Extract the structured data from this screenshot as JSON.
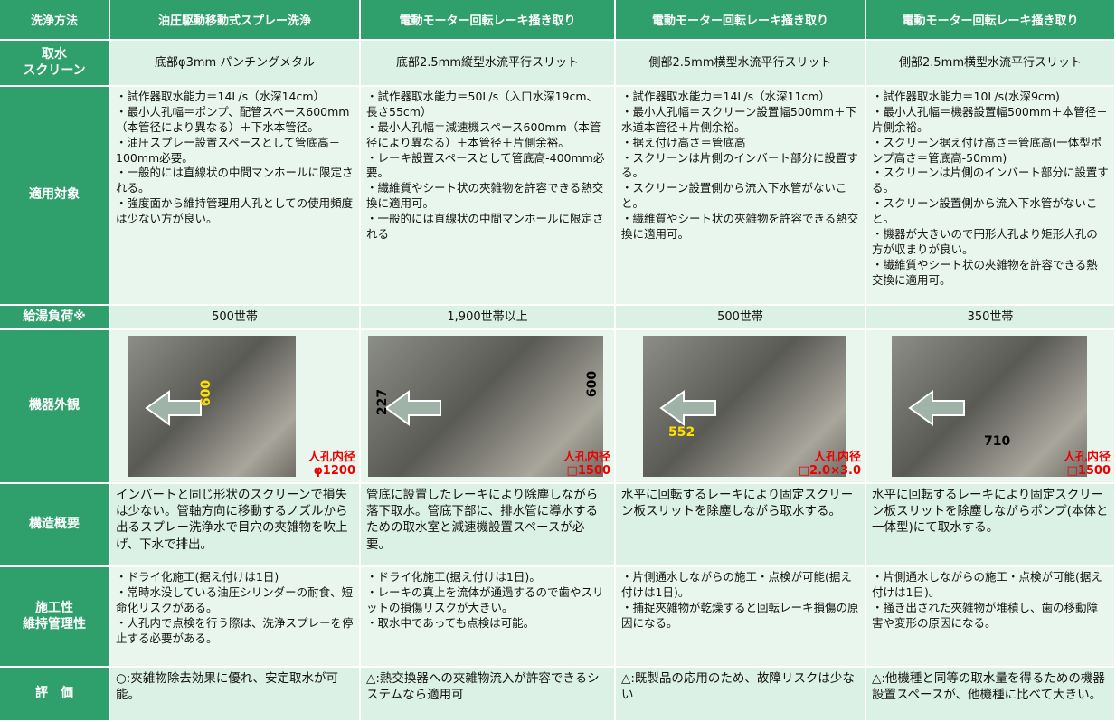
{
  "table": {
    "header": {
      "label": "洗浄方法",
      "columns": [
        "油圧駆動移動式スプレー洗浄",
        "電動モーター回転レーキ掻き取り",
        "電動モーター回転レーキ掻き取り",
        "電動モーター回転レーキ掻き取り"
      ]
    },
    "rows": [
      {
        "label": [
          "取水",
          "スクリーン"
        ],
        "cells": [
          "底部φ3mm パンチングメタル",
          "底部2.5mm縦型水流平行スリット",
          "側部2.5mm横型水流平行スリット",
          "側部2.5mm横型水流平行スリット"
        ]
      },
      {
        "label": [
          "適用対象"
        ],
        "cells": [
          [
            "・試作器取水能力＝14L/s（水深14cm）",
            "・最小人孔幅＝ポンプ、配管スペース600mm（本管径により異なる）＋下水本管径。",
            "・油圧スプレー設置スペースとして管底高－100mm必要。",
            "・一般的には直線状の中間マンホールに限定される。",
            "・強度面から維持管理用人孔としての使用頻度は少ない方が良い。"
          ],
          [
            "・試作器取水能力＝50L/s（入口水深19cm、長さ55cm）",
            "・最小人孔幅＝減速機スペース600mm（本管径により異なる）＋本管径＋片側余裕。",
            "・レーキ設置スペースとして管底高-400mm必要。",
            "・繊維質やシート状の夾雑物を許容できる熱交換に適用可。",
            "・一般的には直線状の中間マンホールに限定される"
          ],
          [
            "・試作器取水能力＝14L/s（水深11cm）",
            "・最小人孔幅＝スクリーン設置幅500mm＋下水道本管径＋片側余裕。",
            "・据え付け高さ＝管底高",
            "・スクリーンは片側のインバート部分に設置する。",
            "・スクリーン設置側から流入下水管がないこと。",
            "・繊維質やシート状の夾雑物を許容できる熱交換に適用可。"
          ],
          [
            "・試作器取水能力＝10L/s(水深9cm)",
            "・最小人孔幅＝機器設置幅500mm＋本管径＋片側余裕。",
            "・スクリーン据え付け高さ＝管底高(一体型ポンプ高さ＝管底高-50mm)",
            "・スクリーンは片側のインバート部分に設置する。",
            "・スクリーン設置側から流入下水管がないこと。",
            "・機器が大きいので円形人孔より矩形人孔の方が収まりが良い。",
            "・繊維質やシート状の夾雑物を許容できる熱交換に適用可。"
          ]
        ]
      },
      {
        "label": [
          "給湯負荷※"
        ],
        "cells": [
          "500世帯",
          "1,900世帯以上",
          "500世帯",
          "350世帯"
        ]
      },
      {
        "label": [
          "機器外観"
        ],
        "cells": [
          {
            "dimensions": [
              "600"
            ],
            "manhole": [
              "人孔内径",
              "φ1200"
            ]
          },
          {
            "dimensions": [
              "227",
              "600"
            ],
            "manhole": [
              "人孔内径",
              "□1500"
            ]
          },
          {
            "dimensions": [
              "552"
            ],
            "manhole": [
              "人孔内径",
              "□2.0×3.0"
            ]
          },
          {
            "dimensions": [
              "710"
            ],
            "manhole": [
              "人孔内径",
              "□1500"
            ]
          }
        ]
      },
      {
        "label": [
          "構造概要"
        ],
        "cells": [
          "インバートと同じ形状のスクリーンで損失は少ない。管軸方向に移動するノズルから出るスプレー洗浄水で目穴の夾雑物を吹上げ、下水で排出。",
          "管底に設置したレーキにより除塵しながら落下取水。管底下部に、排水管に導水するための取水室と減速機設置スペースが必要。",
          "水平に回転するレーキにより固定スクリーン板スリットを除塵しながら取水する。",
          "水平に回転するレーキにより固定スクリーン板スリットを除塵しながらポンプ(本体と一体型)にて取水する。"
        ]
      },
      {
        "label": [
          "施工性",
          "維持管理性"
        ],
        "cells": [
          [
            "・ドライ化施工(据え付けは1日)",
            "・常時水没している油圧シリンダーの耐食、短命化リスクがある。",
            "・人孔内で点検を行う際は、洗浄スプレーを停止する必要がある。"
          ],
          [
            "・ドライ化施工(据え付けは1日)。",
            "・レーキの真上を流体が通過するので歯やスリットの損傷リスクが大きい。",
            "・取水中であっても点検は可能。"
          ],
          [
            "・片側通水しながらの施工・点検が可能(据え付けは1日)。",
            "・捕捉夾雑物が乾燥すると回転レーキ損傷の原因になる。"
          ],
          [
            "・片側通水しながらの施工・点検が可能(据え付けは1日)。",
            "・掻き出された夾雑物が堆積し、歯の移動障害や変形の原因になる。"
          ]
        ]
      },
      {
        "label": [
          "評　価"
        ],
        "cells": [
          "○:夾雑物除去効果に優れ、安定取水が可能。",
          "△:熱交換器への夾雑物流入が許容できるシステムなら適用可",
          "△:既製品の応用のため、故障リスクは少ない",
          "△:他機種と同等の取水量を得るための機器設置スペースが、他機種に比べて大きい。"
        ]
      }
    ]
  }
}
